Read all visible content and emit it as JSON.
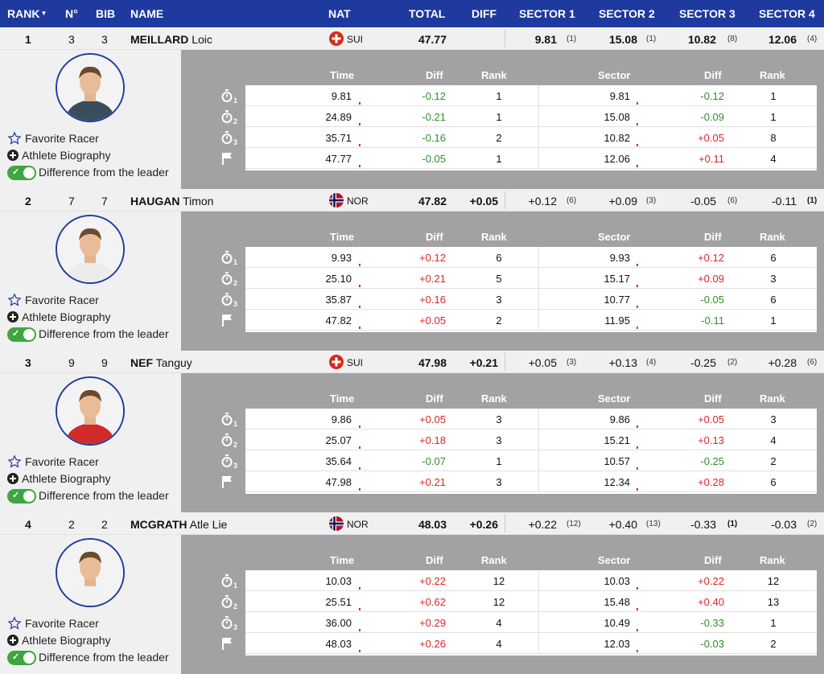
{
  "header": {
    "rank": "RANK",
    "no": "N°",
    "bib": "BIB",
    "name": "NAME",
    "nat": "NAT",
    "total": "TOTAL",
    "diff": "DIFF",
    "s1": "SECTOR 1",
    "s2": "SECTOR 2",
    "s3": "SECTOR 3",
    "s4": "SECTOR 4"
  },
  "detail_header": {
    "time": "Time",
    "diff": "Diff",
    "rank": "Rank",
    "sector": "Sector",
    "sdiff": "Diff",
    "srank": "Rank"
  },
  "actions": {
    "favorite": "Favorite Racer",
    "bio": "Athlete Biography",
    "difference": "Difference from the leader"
  },
  "colors": {
    "header_bg": "#1f3a9e",
    "positive": "#d8262b",
    "negative": "#2f8f2f",
    "panel_gray": "#a2a2a2"
  },
  "racers": [
    {
      "rank": "1",
      "no": "3",
      "bib": "3",
      "last": "MEILLARD",
      "first": "Loic",
      "nat": "SUI",
      "flag": "switzerland-flag",
      "total": "47.77",
      "diff": "",
      "s1": "9.81",
      "s1r": "(1)",
      "s1b": true,
      "s2": "15.08",
      "s2r": "(1)",
      "s2b": true,
      "s3": "10.82",
      "s3r": "(8)",
      "s3b": true,
      "s4": "12.06",
      "s4r": "(4)",
      "s4b": true,
      "splits": [
        {
          "time": "9.81",
          "diff": "-0.12",
          "rank": "1",
          "sector": "9.81",
          "sdiff": "-0.12",
          "srank": "1"
        },
        {
          "time": "24.89",
          "diff": "-0.21",
          "rank": "1",
          "sector": "15.08",
          "sdiff": "-0.09",
          "srank": "1"
        },
        {
          "time": "35.71",
          "diff": "-0.16",
          "rank": "2",
          "sector": "10.82",
          "sdiff": "+0.05",
          "srank": "8"
        },
        {
          "time": "47.77",
          "diff": "-0.05",
          "rank": "1",
          "sector": "12.06",
          "sdiff": "+0.11",
          "srank": "4"
        }
      ]
    },
    {
      "rank": "2",
      "no": "7",
      "bib": "7",
      "last": "HAUGAN",
      "first": "Timon",
      "nat": "NOR",
      "flag": "norway-flag",
      "total": "47.82",
      "diff": "+0.05",
      "s1": "+0.12",
      "s1r": "(6)",
      "s1b": false,
      "s2": "+0.09",
      "s2r": "(3)",
      "s2b": false,
      "s3": "-0.05",
      "s3r": "(6)",
      "s3b": false,
      "s4": "-0.11",
      "s4r": "(1)",
      "s4b": false,
      "s4rb": true,
      "splits": [
        {
          "time": "9.93",
          "diff": "+0.12",
          "rank": "6",
          "sector": "9.93",
          "sdiff": "+0.12",
          "srank": "6"
        },
        {
          "time": "25.10",
          "diff": "+0.21",
          "rank": "5",
          "sector": "15.17",
          "sdiff": "+0.09",
          "srank": "3"
        },
        {
          "time": "35.87",
          "diff": "+0.16",
          "rank": "3",
          "sector": "10.77",
          "sdiff": "-0.05",
          "srank": "6"
        },
        {
          "time": "47.82",
          "diff": "+0.05",
          "rank": "2",
          "sector": "11.95",
          "sdiff": "-0.11",
          "srank": "1"
        }
      ]
    },
    {
      "rank": "3",
      "no": "9",
      "bib": "9",
      "last": "NEF",
      "first": "Tanguy",
      "nat": "SUI",
      "flag": "switzerland-flag",
      "total": "47.98",
      "diff": "+0.21",
      "s1": "+0.05",
      "s1r": "(3)",
      "s1b": false,
      "s2": "+0.13",
      "s2r": "(4)",
      "s2b": false,
      "s3": "-0.25",
      "s3r": "(2)",
      "s3b": false,
      "s4": "+0.28",
      "s4r": "(6)",
      "s4b": false,
      "splits": [
        {
          "time": "9.86",
          "diff": "+0.05",
          "rank": "3",
          "sector": "9.86",
          "sdiff": "+0.05",
          "srank": "3"
        },
        {
          "time": "25.07",
          "diff": "+0.18",
          "rank": "3",
          "sector": "15.21",
          "sdiff": "+0.13",
          "srank": "4"
        },
        {
          "time": "35.64",
          "diff": "-0.07",
          "rank": "1",
          "sector": "10.57",
          "sdiff": "-0.25",
          "srank": "2"
        },
        {
          "time": "47.98",
          "diff": "+0.21",
          "rank": "3",
          "sector": "12.34",
          "sdiff": "+0.28",
          "srank": "6"
        }
      ]
    },
    {
      "rank": "4",
      "no": "2",
      "bib": "2",
      "last": "MCGRATH",
      "first": "Atle Lie",
      "nat": "NOR",
      "flag": "norway-flag",
      "total": "48.03",
      "diff": "+0.26",
      "s1": "+0.22",
      "s1r": "(12)",
      "s1b": false,
      "s2": "+0.40",
      "s2r": "(13)",
      "s2b": false,
      "s3": "-0.33",
      "s3r": "(1)",
      "s3b": false,
      "s3rb": true,
      "s4": "-0.03",
      "s4r": "(2)",
      "s4b": false,
      "splits": [
        {
          "time": "10.03",
          "diff": "+0.22",
          "rank": "12",
          "sector": "10.03",
          "sdiff": "+0.22",
          "srank": "12"
        },
        {
          "time": "25.51",
          "diff": "+0.62",
          "rank": "12",
          "sector": "15.48",
          "sdiff": "+0.40",
          "srank": "13"
        },
        {
          "time": "36.00",
          "diff": "+0.29",
          "rank": "4",
          "sector": "10.49",
          "sdiff": "-0.33",
          "srank": "1"
        },
        {
          "time": "48.03",
          "diff": "+0.26",
          "rank": "4",
          "sector": "12.03",
          "sdiff": "-0.03",
          "srank": "2"
        }
      ]
    }
  ]
}
